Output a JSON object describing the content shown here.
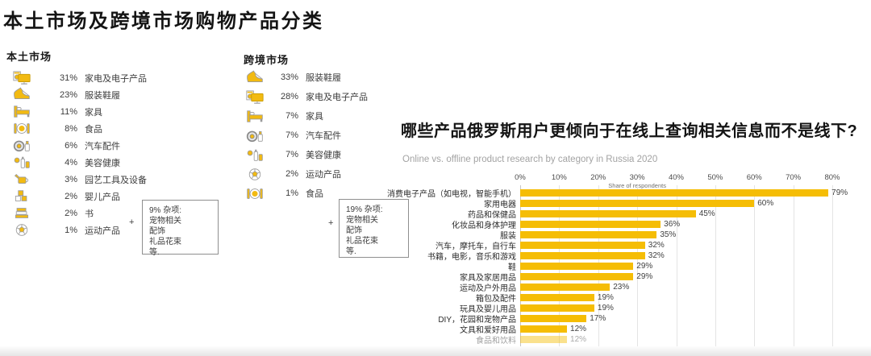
{
  "page": {
    "title": "本土市场及跨境市场购物产品分类"
  },
  "colors": {
    "accent_yellow": "#F5BD05",
    "icon_yellow": "#F2BA12",
    "grid_gray": "#e4e4e4"
  },
  "local_market": {
    "header": "本土市场",
    "items": [
      {
        "pct": "31%",
        "label": "家电及电子产品",
        "icon": "appliances-icon"
      },
      {
        "pct": "23%",
        "label": "服装鞋履",
        "icon": "footwear-icon"
      },
      {
        "pct": "11%",
        "label": "家具",
        "icon": "furniture-icon"
      },
      {
        "pct": "8%",
        "label": "食品",
        "icon": "food-icon"
      },
      {
        "pct": "6%",
        "label": "汽车配件",
        "icon": "auto-parts-icon"
      },
      {
        "pct": "4%",
        "label": "美容健康",
        "icon": "beauty-icon"
      },
      {
        "pct": "3%",
        "label": "园艺工具及设备",
        "icon": "garden-icon"
      },
      {
        "pct": "2%",
        "label": "婴儿产品",
        "icon": "baby-icon"
      },
      {
        "pct": "2%",
        "label": "书",
        "icon": "books-icon"
      },
      {
        "pct": "1%",
        "label": "运动产品",
        "icon": "sports-icon"
      }
    ],
    "plus_sign": "+",
    "misc_lines": [
      "9% 杂项:",
      "宠物相关",
      "配饰",
      "礼品花束",
      "等."
    ]
  },
  "cross_border_market": {
    "header": "跨境市场",
    "items": [
      {
        "pct": "33%",
        "label": "服装鞋履",
        "icon": "footwear-icon"
      },
      {
        "pct": "28%",
        "label": "家电及电子产品",
        "icon": "appliances-icon"
      },
      {
        "pct": "7%",
        "label": "家具",
        "icon": "furniture-icon"
      },
      {
        "pct": "7%",
        "label": "汽车配件",
        "icon": "auto-parts-icon"
      },
      {
        "pct": "7%",
        "label": "美容健康",
        "icon": "beauty-icon"
      },
      {
        "pct": "2%",
        "label": "运动产品",
        "icon": "sports-icon"
      },
      {
        "pct": "1%",
        "label": "食品",
        "icon": "food-icon"
      }
    ],
    "plus_sign": "+",
    "misc_lines": [
      "19% 杂项:",
      "宠物相关",
      "配饰",
      "礼品花束",
      "等."
    ]
  },
  "chart_data": {
    "type": "bar",
    "orientation": "horizontal",
    "title": "哪些产品俄罗斯用户更倾向于在线上查询相关信息而不是线下?",
    "subtitle": "Online vs. offline product research by category in Russia 2020",
    "xlabel": "Share of respondents",
    "x_ticks": [
      "0%",
      "10%",
      "20%",
      "30%",
      "40%",
      "50%",
      "60%",
      "70%",
      "80%"
    ],
    "xlim": [
      0,
      80
    ],
    "grid": true,
    "bar_color": "#F5BD05",
    "categories": [
      "消费电子产品（如电视，智能手机）",
      "家用电器",
      "药品和保健品",
      "化妆品和身体护理",
      "服装",
      "汽车，摩托车，自行车",
      "书籍，电影，音乐和游戏",
      "鞋",
      "家具及家居用品",
      "运动及户外用品",
      "箱包及配件",
      "玩具及婴儿用品",
      "DIY，花园和宠物产品",
      "文具和爱好用品",
      "食品和饮料"
    ],
    "values": [
      79,
      60,
      45,
      36,
      35,
      32,
      32,
      29,
      29,
      23,
      19,
      19,
      17,
      12,
      12
    ],
    "value_labels": [
      "79%",
      "60%",
      "45%",
      "36%",
      "35%",
      "32%",
      "32%",
      "29%",
      "29%",
      "23%",
      "19%",
      "19%",
      "17%",
      "12%",
      "12%"
    ],
    "faded_last_row": true
  }
}
